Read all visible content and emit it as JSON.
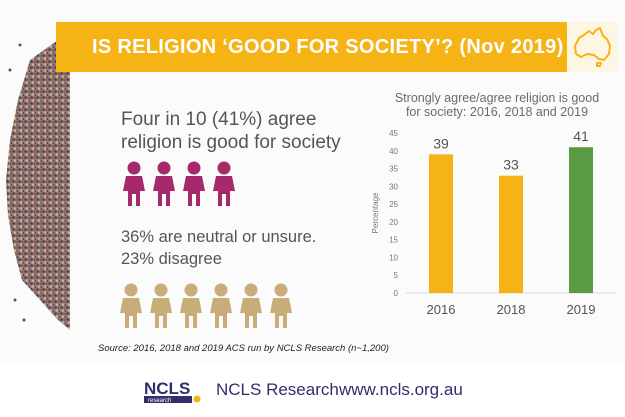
{
  "slide": {
    "title": "IS RELIGION ‘GOOD FOR SOCIETY’? (Nov 2019)",
    "lead_text": "Four in 10 (41%) agree\nreligion is good for society",
    "neutral_text": "36% are neutral or unsure.",
    "disagree_text": "23% disagree",
    "source": "Source: 2016, 2018 and 2019 ACS run by NCLS Research (n~1,200)",
    "agree_figures": 4,
    "neutral_figures": 6
  },
  "colors": {
    "banner": "#f6b315",
    "agree_figure": "#a62a6b",
    "neutral_figure": "#c9ad78",
    "bar_orange": "#f6b315",
    "bar_green": "#5a9a43",
    "footer_text": "#2f2f6e"
  },
  "footer": {
    "logo_text": "NCLS",
    "logo_subtext": "research",
    "org_name": "NCLS Research",
    "url": "www.ncls.org.au"
  },
  "chart_data": {
    "type": "bar",
    "title": "Strongly agree/agree religion is good\nfor society: 2016, 2018 and 2019",
    "categories": [
      "2016",
      "2018",
      "2019"
    ],
    "values": [
      39,
      33,
      41
    ],
    "value_labels": [
      "39",
      "33",
      "41"
    ],
    "bar_colors": [
      "#f6b315",
      "#f6b315",
      "#5a9a43"
    ],
    "ylabel": "Percentage",
    "xlabel": "",
    "ylim": [
      0,
      45
    ],
    "yticks": [
      0,
      5,
      10,
      15,
      20,
      25,
      30,
      35,
      40,
      45
    ],
    "grid": false,
    "legend": "none"
  }
}
